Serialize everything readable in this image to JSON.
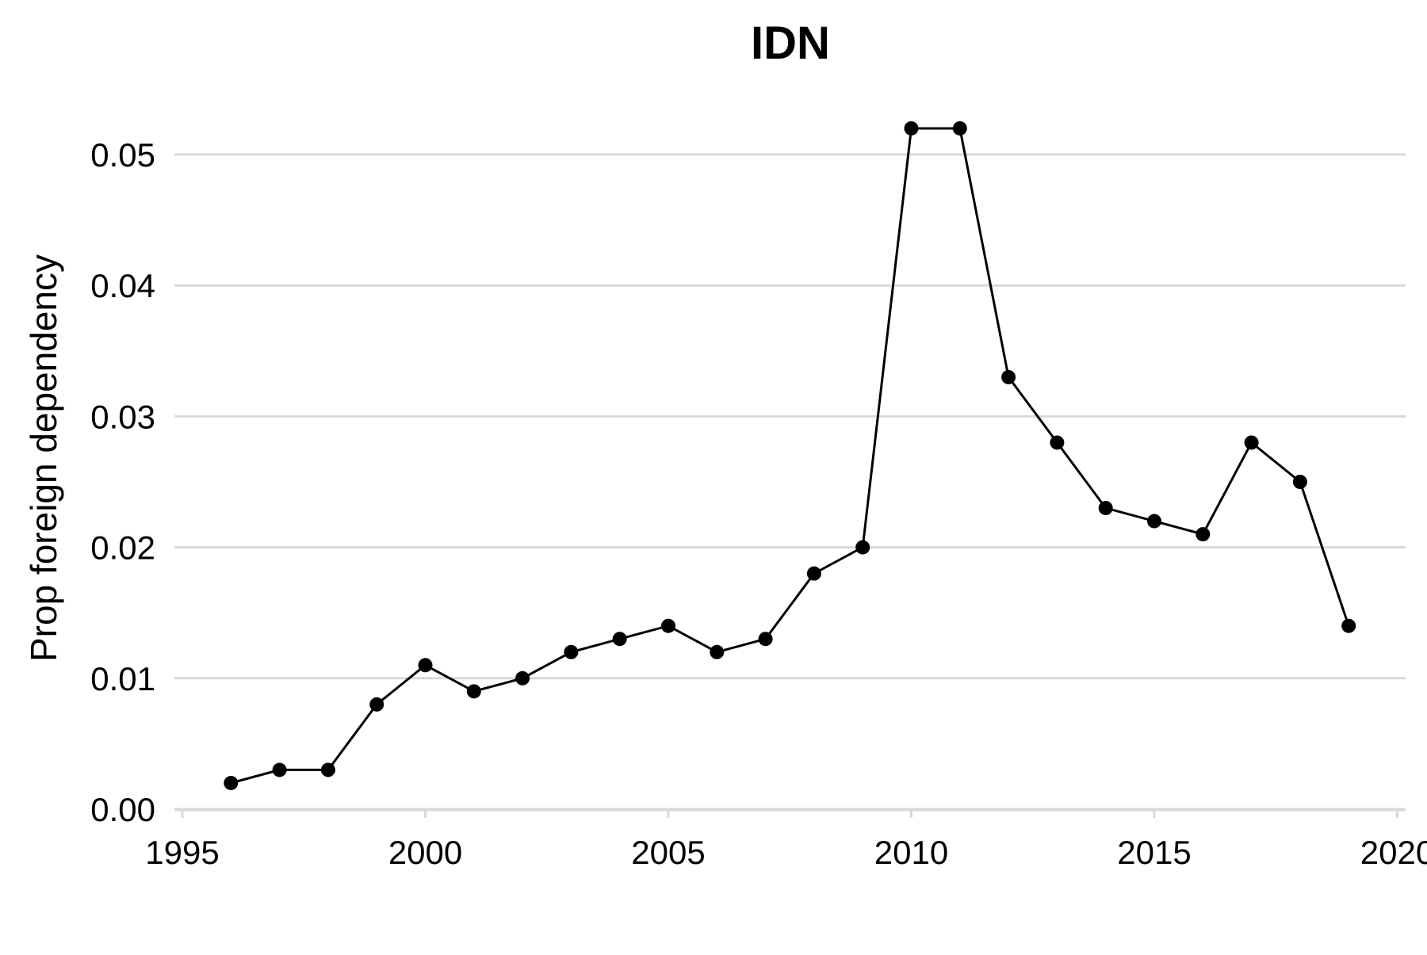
{
  "chart_data": {
    "type": "line",
    "title": "IDN",
    "xlabel": "",
    "ylabel": "Prop foreign dependency",
    "xlim": [
      1995,
      2020
    ],
    "ylim": [
      0.0,
      0.052
    ],
    "xticks": [
      1995,
      2000,
      2005,
      2010,
      2015,
      2020
    ],
    "xtick_labels": [
      "1995",
      "2000",
      "2005",
      "2010",
      "2015",
      "2020"
    ],
    "yticks": [
      0.0,
      0.01,
      0.02,
      0.03,
      0.04,
      0.05
    ],
    "ytick_labels": [
      "0.00",
      "0.01",
      "0.02",
      "0.03",
      "0.04",
      "0.05"
    ],
    "grid": "horizontal",
    "series": [
      {
        "x": [
          1996,
          1997,
          1998,
          1999,
          2000,
          2001,
          2002,
          2003,
          2004,
          2005,
          2006,
          2007,
          2008,
          2009,
          2010,
          2011,
          2012,
          2013,
          2014,
          2015,
          2016,
          2017,
          2018,
          2019
        ],
        "values": [
          0.002,
          0.003,
          0.003,
          0.008,
          0.011,
          0.009,
          0.01,
          0.012,
          0.013,
          0.014,
          0.012,
          0.013,
          0.018,
          0.02,
          0.052,
          0.052,
          0.033,
          0.028,
          0.023,
          0.022,
          0.021,
          0.028,
          0.025,
          0.014
        ],
        "color": "#000000"
      }
    ],
    "colors": {
      "grid": "#d9d9d9",
      "line": "#000000",
      "background": "#ffffff"
    }
  }
}
